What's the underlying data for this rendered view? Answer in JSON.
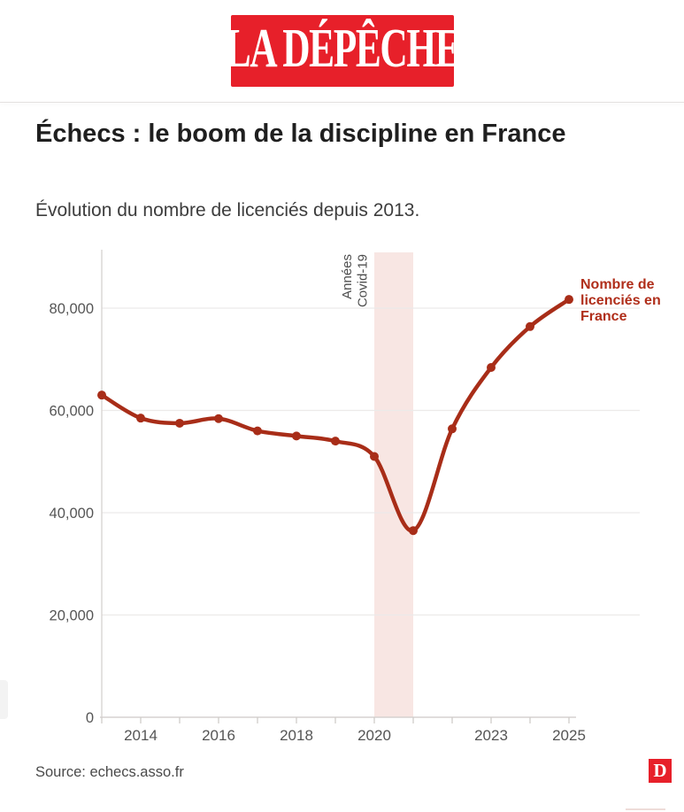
{
  "header": {
    "logo_text": "LA DÉPÊCHE"
  },
  "article": {
    "title": "Échecs : le boom de la discipline en France",
    "subtitle": "Évolution du nombre de licenciés depuis 2013."
  },
  "chart_data": {
    "type": "line",
    "title": "Évolution du nombre de licenciés depuis 2013",
    "x": [
      2013,
      2014,
      2015,
      2016,
      2017,
      2018,
      2019,
      2020,
      2021,
      2022,
      2023,
      2024,
      2025
    ],
    "series": [
      {
        "name": "Nombre de licenciés en France",
        "values": [
          63000,
          58500,
          57500,
          58400,
          56000,
          55000,
          54000,
          51000,
          36500,
          56400,
          68400,
          76400,
          81700
        ]
      }
    ],
    "series_label_lines": [
      "Nombre de",
      "licenciés en",
      "France"
    ],
    "xlim": [
      2013,
      2025
    ],
    "ylim": [
      0,
      90000
    ],
    "yticks": [
      0,
      20000,
      40000,
      60000,
      80000
    ],
    "ytick_labels": [
      "0",
      "20,000",
      "40,000",
      "60,000",
      "80,000"
    ],
    "xticks_minor_years": [
      2013,
      2014,
      2015,
      2016,
      2017,
      2018,
      2019,
      2020,
      2021,
      2022,
      2023,
      2024,
      2025
    ],
    "xtick_labeled_years": [
      2014,
      2016,
      2018,
      2020,
      2023,
      2025
    ],
    "xtick_labels": [
      "2014",
      "2016",
      "2018",
      "2020",
      "2023",
      "2025"
    ],
    "grid": true,
    "legend_position": "right-of-last-point",
    "band": {
      "x_from": 2020,
      "x_to": 2021,
      "label_lines": [
        "Années",
        "Covid-19"
      ]
    }
  },
  "colors": {
    "line_red": "#a82d18",
    "series_label_red": "#b02e1a",
    "logo_red": "#e7202a",
    "band_pink": "#f8e6e3",
    "grid_gray": "#eceae9",
    "axis_gray": "#d6d2d0",
    "tick_gray": "#cfcbc9",
    "tick_text_gray": "#555555",
    "covid_text_gray": "#4f4f4f"
  },
  "footer": {
    "source": "Source: echecs.asso.fr",
    "brand_initial": "D"
  }
}
